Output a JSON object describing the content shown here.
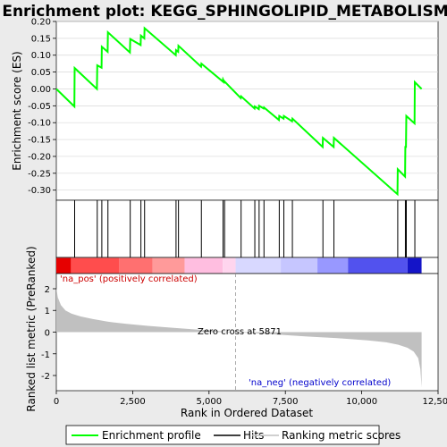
{
  "title": "Enrichment plot: KEGG_SPHINGOLIPID_METABOLISM",
  "chart_data": [
    {
      "type": "line",
      "panel": "enrichment",
      "ylabel": "Enrichment score (ES)",
      "xlim": [
        0,
        12500
      ],
      "ylim": [
        -0.33,
        0.2
      ],
      "yticks": [
        0.2,
        0.15,
        0.1,
        0.05,
        0.0,
        -0.05,
        -0.1,
        -0.15,
        -0.2,
        -0.25,
        -0.3
      ],
      "ytick_labels": [
        "0.20",
        "0.15",
        "0.10",
        "0.05",
        "0.00",
        "-0.05",
        "-0.10",
        "-0.15",
        "-0.20",
        "-0.25",
        "-0.30"
      ],
      "grid": true,
      "line_color": "#00ff00",
      "series": [
        {
          "name": "Enrichment profile",
          "x": [
            0,
            590,
            600,
            1330,
            1340,
            1480,
            1490,
            1680,
            1690,
            2410,
            2420,
            2760,
            2770,
            2880,
            2890,
            3910,
            3920,
            3990,
            4000,
            4740,
            4750,
            5450,
            5460,
            5500,
            5510,
            6040,
            6050,
            6490,
            6500,
            6630,
            6640,
            6790,
            6800,
            7290,
            7300,
            7440,
            7450,
            7720,
            7730,
            8720,
            8730,
            9080,
            9090,
            11170,
            11180,
            11420,
            11430,
            11450,
            11460,
            11730,
            11740,
            11960
          ],
          "y": [
            0.0,
            -0.052,
            0.062,
            0.0,
            0.07,
            0.063,
            0.125,
            0.11,
            0.168,
            0.108,
            0.148,
            0.13,
            0.158,
            0.15,
            0.18,
            0.1,
            0.115,
            0.11,
            0.128,
            0.066,
            0.075,
            0.022,
            0.028,
            0.02,
            0.022,
            -0.027,
            -0.022,
            -0.058,
            -0.052,
            -0.06,
            -0.05,
            -0.058,
            -0.055,
            -0.092,
            -0.08,
            -0.088,
            -0.08,
            -0.096,
            -0.088,
            -0.172,
            -0.145,
            -0.172,
            -0.145,
            -0.312,
            -0.238,
            -0.26,
            -0.172,
            -0.172,
            -0.08,
            -0.102,
            0.02,
            0.0
          ]
        }
      ]
    },
    {
      "type": "hits",
      "panel": "hits",
      "legend_label": "Hits",
      "xlim": [
        0,
        12500
      ],
      "hit_positions": [
        600,
        1340,
        1490,
        1690,
        2420,
        2770,
        2890,
        3920,
        4000,
        4750,
        5460,
        5510,
        6050,
        6500,
        6640,
        6800,
        7300,
        7450,
        7730,
        8730,
        9090,
        11180,
        11430,
        11460,
        11740
      ]
    },
    {
      "type": "heatmap",
      "panel": "rank-color-bar",
      "xlim": [
        0,
        12500
      ],
      "data_max": 11960,
      "segments": [
        {
          "start": 0,
          "end": 480,
          "color": "#e60000"
        },
        {
          "start": 480,
          "end": 2050,
          "color": "#ff4d4d"
        },
        {
          "start": 2050,
          "end": 3150,
          "color": "#ff7070"
        },
        {
          "start": 3150,
          "end": 4200,
          "color": "#ff9a9a"
        },
        {
          "start": 4200,
          "end": 5450,
          "color": "#ffbee0"
        },
        {
          "start": 5450,
          "end": 5871,
          "color": "#ffd5ee"
        },
        {
          "start": 5871,
          "end": 7350,
          "color": "#d8d8ff"
        },
        {
          "start": 7350,
          "end": 8550,
          "color": "#c6c6ff"
        },
        {
          "start": 8550,
          "end": 9550,
          "color": "#9898ff"
        },
        {
          "start": 9550,
          "end": 11500,
          "color": "#5252ee"
        },
        {
          "start": 11500,
          "end": 11960,
          "color": "#1414c8"
        }
      ]
    },
    {
      "type": "area",
      "panel": "ranked-metric",
      "ylabel": "Ranked list metric (PreRanked)",
      "xlabel": "Rank in Ordered Dataset",
      "legend_label": "Ranking metric scores",
      "xlim": [
        0,
        12500
      ],
      "ylim": [
        -2.7,
        2.7
      ],
      "xticks": [
        0,
        2500,
        5000,
        7500,
        10000,
        12500
      ],
      "xtick_labels": [
        "0",
        "2,500",
        "5,000",
        "7,500",
        "10,000",
        "12,500"
      ],
      "yticks": [
        2,
        1,
        0,
        -1,
        -2
      ],
      "ytick_labels": [
        "2",
        "1",
        "0",
        "-1",
        "-2"
      ],
      "zero_cross": 5871,
      "zero_cross_label": "Zero cross at 5871",
      "pos_label": "'na_pos' (positively correlated)",
      "neg_label": "'na_neg' (negatively correlated)",
      "fill_color": "#c0c0c0",
      "x": [
        0,
        50,
        150,
        300,
        500,
        800,
        1200,
        1700,
        2300,
        3000,
        3800,
        4600,
        5300,
        5871,
        6500,
        7300,
        8200,
        9200,
        10200,
        10800,
        11200,
        11500,
        11700,
        11850,
        11920,
        11960
      ],
      "y": [
        2.05,
        1.6,
        1.25,
        1.0,
        0.85,
        0.72,
        0.6,
        0.48,
        0.38,
        0.29,
        0.2,
        0.12,
        0.05,
        0.0,
        -0.05,
        -0.12,
        -0.2,
        -0.28,
        -0.38,
        -0.47,
        -0.58,
        -0.72,
        -0.9,
        -1.2,
        -1.7,
        -2.55
      ]
    }
  ],
  "legend": {
    "items": [
      {
        "label": "Enrichment profile",
        "color": "#00ff00"
      },
      {
        "label": "Hits",
        "color": "#000000"
      },
      {
        "label": "Ranking metric scores",
        "color": "#c0c0c0"
      }
    ]
  }
}
